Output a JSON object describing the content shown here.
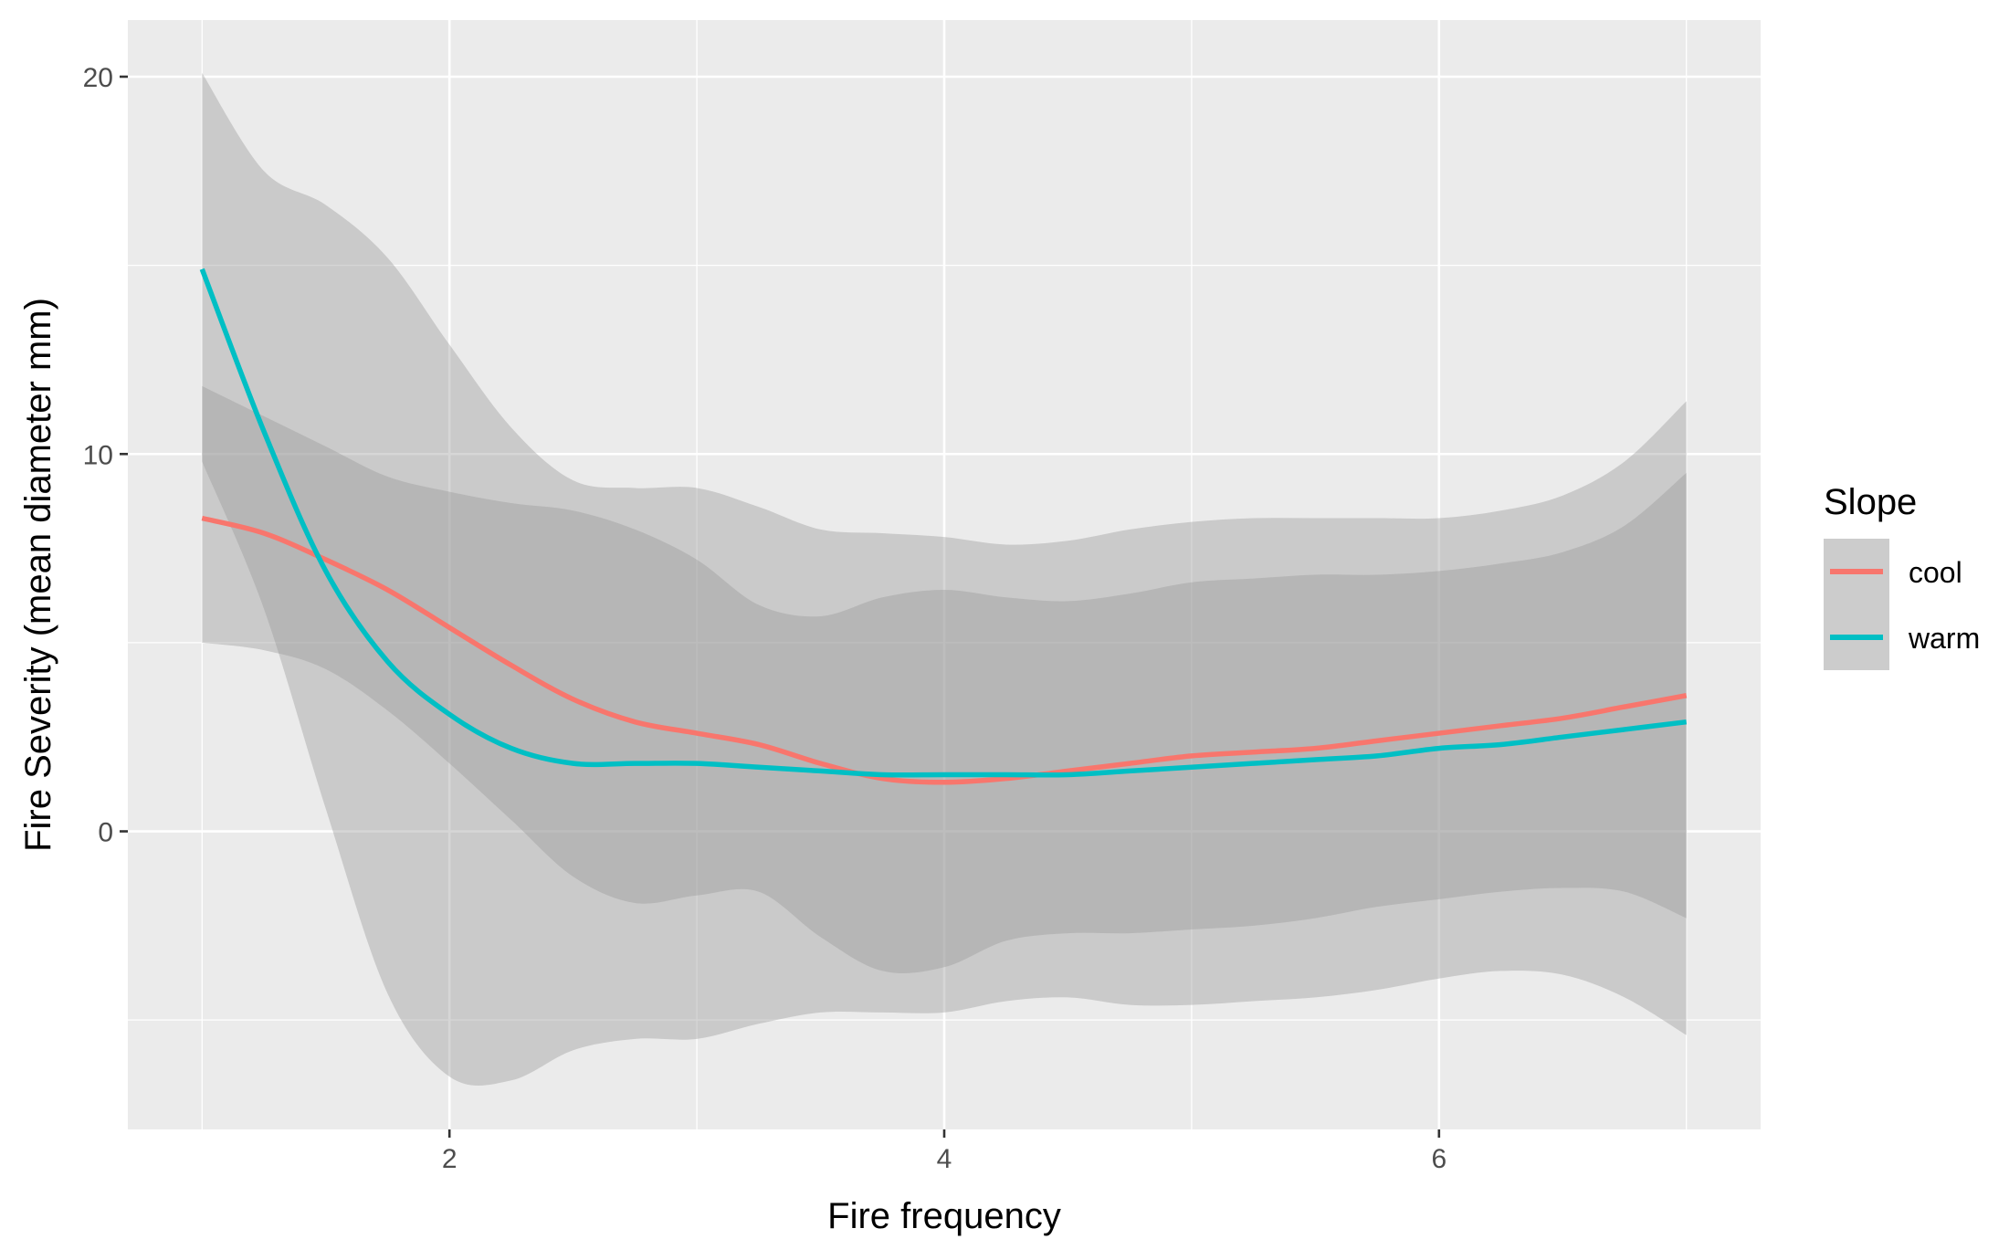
{
  "chart_data": {
    "type": "line",
    "xlabel": "Fire frequency",
    "ylabel": "Fire Severity (mean diameter mm)",
    "xlim": [
      0.7,
      7.3
    ],
    "ylim": [
      -7.9,
      21.5
    ],
    "x_ticks": [
      2,
      4,
      6
    ],
    "y_ticks": [
      0,
      10,
      20
    ],
    "x_tick_labels": [
      "2",
      "4",
      "6"
    ],
    "y_tick_labels": [
      "0",
      "10",
      "20"
    ],
    "grid": true,
    "legend": {
      "title": "Slope",
      "placement": "right"
    },
    "colors": {
      "panel_background": "#ebebeb",
      "grid_major": "#ffffff",
      "ribbon": "#999999",
      "cool": "#f8766d",
      "warm": "#00bfc4"
    },
    "series": [
      {
        "name": "cool",
        "color": "#f8766d",
        "x": [
          1.0,
          1.25,
          1.5,
          1.75,
          2.0,
          2.25,
          2.5,
          2.75,
          3.0,
          3.25,
          3.5,
          3.75,
          4.0,
          4.25,
          4.5,
          4.75,
          5.0,
          5.25,
          5.5,
          5.75,
          6.0,
          6.25,
          6.5,
          6.75,
          7.0
        ],
        "y": [
          8.3,
          7.9,
          7.2,
          6.4,
          5.4,
          4.4,
          3.5,
          2.9,
          2.6,
          2.3,
          1.8,
          1.4,
          1.3,
          1.4,
          1.6,
          1.8,
          2.0,
          2.1,
          2.2,
          2.4,
          2.6,
          2.8,
          3.0,
          3.3,
          3.6
        ],
        "lower": [
          5.0,
          4.8,
          4.3,
          3.2,
          1.8,
          0.3,
          -1.2,
          -1.9,
          -1.7,
          -1.6,
          -2.8,
          -3.7,
          -3.6,
          -2.9,
          -2.7,
          -2.7,
          -2.6,
          -2.5,
          -2.3,
          -2.0,
          -1.8,
          -1.6,
          -1.5,
          -1.6,
          -2.3
        ],
        "upper": [
          11.8,
          11.0,
          10.2,
          9.4,
          9.0,
          8.7,
          8.5,
          8.0,
          7.2,
          6.0,
          5.7,
          6.2,
          6.4,
          6.2,
          6.1,
          6.3,
          6.6,
          6.7,
          6.8,
          6.8,
          6.9,
          7.1,
          7.4,
          8.1,
          9.5
        ]
      },
      {
        "name": "warm",
        "color": "#00bfc4",
        "x": [
          1.0,
          1.25,
          1.5,
          1.75,
          2.0,
          2.25,
          2.5,
          2.75,
          3.0,
          3.25,
          3.5,
          3.75,
          4.0,
          4.25,
          4.5,
          4.75,
          5.0,
          5.25,
          5.5,
          5.75,
          6.0,
          6.25,
          6.5,
          6.75,
          7.0
        ],
        "y": [
          14.9,
          10.6,
          6.9,
          4.5,
          3.1,
          2.2,
          1.8,
          1.8,
          1.8,
          1.7,
          1.6,
          1.5,
          1.5,
          1.5,
          1.5,
          1.6,
          1.7,
          1.8,
          1.9,
          2.0,
          2.2,
          2.3,
          2.5,
          2.7,
          2.9
        ],
        "lower": [
          9.8,
          5.9,
          0.6,
          -4.3,
          -6.5,
          -6.6,
          -5.8,
          -5.5,
          -5.5,
          -5.1,
          -4.8,
          -4.8,
          -4.8,
          -4.5,
          -4.4,
          -4.6,
          -4.6,
          -4.5,
          -4.4,
          -4.2,
          -3.9,
          -3.7,
          -3.8,
          -4.4,
          -5.4
        ],
        "upper": [
          20.1,
          17.5,
          16.6,
          15.2,
          12.9,
          10.7,
          9.3,
          9.1,
          9.1,
          8.6,
          8.0,
          7.9,
          7.8,
          7.6,
          7.7,
          8.0,
          8.2,
          8.3,
          8.3,
          8.3,
          8.3,
          8.5,
          8.9,
          9.8,
          11.4
        ]
      }
    ]
  }
}
